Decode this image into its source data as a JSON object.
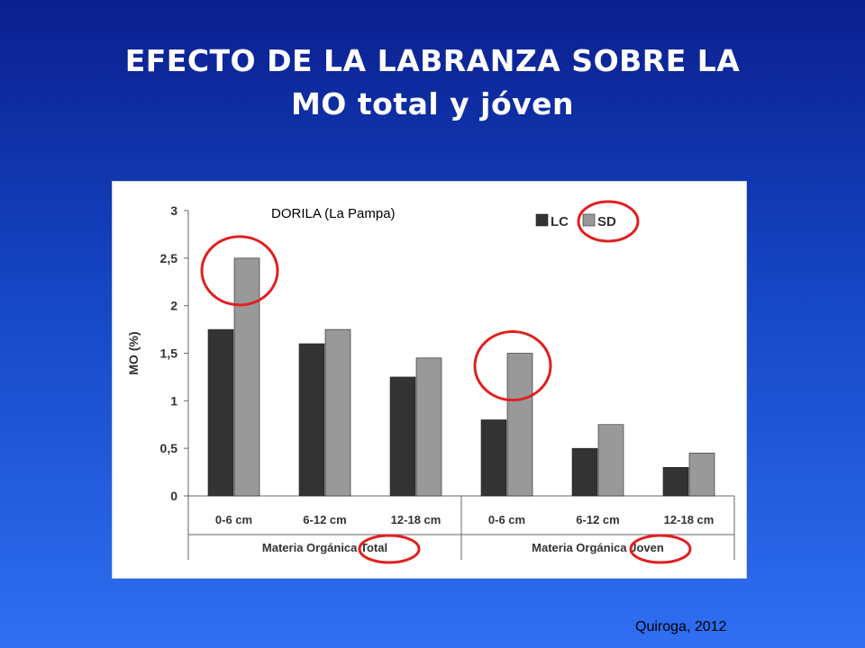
{
  "slide": {
    "title_line1": "EFECTO DE LA LABRANZA SOBRE LA",
    "title_line2": "MO total y jóven",
    "credit": "Quiroga, 2012"
  },
  "chart_data": {
    "type": "bar",
    "annotation": "DORILA (La Pampa)",
    "ylabel": "MO (%)",
    "ylim": [
      0,
      3
    ],
    "yticks": [
      "0",
      "0,5",
      "1",
      "1,5",
      "2",
      "2,5",
      "3"
    ],
    "ytick_values": [
      0,
      0.5,
      1,
      1.5,
      2,
      2.5,
      3
    ],
    "categories": [
      "0-6 cm",
      "6-12 cm",
      "12-18 cm",
      "0-6 cm",
      "6-12 cm",
      "12-18 cm"
    ],
    "groups": [
      {
        "label": "Materia Orgánica Total",
        "categories": [
          0,
          1,
          2
        ]
      },
      {
        "label": "Materia Orgánica Joven",
        "categories": [
          3,
          4,
          5
        ]
      }
    ],
    "series": [
      {
        "name": "LC",
        "color": "#333333",
        "values": [
          1.75,
          1.6,
          1.25,
          0.8,
          0.5,
          0.3
        ]
      },
      {
        "name": "SD",
        "color": "#999999",
        "values": [
          2.5,
          1.75,
          1.45,
          1.5,
          0.75,
          0.45
        ]
      }
    ],
    "legend": "top-right",
    "grid": false,
    "highlight_color": "#e02020",
    "highlighted_bars": [
      {
        "series": 1,
        "category": 0
      },
      {
        "series": 1,
        "category": 3
      }
    ]
  }
}
